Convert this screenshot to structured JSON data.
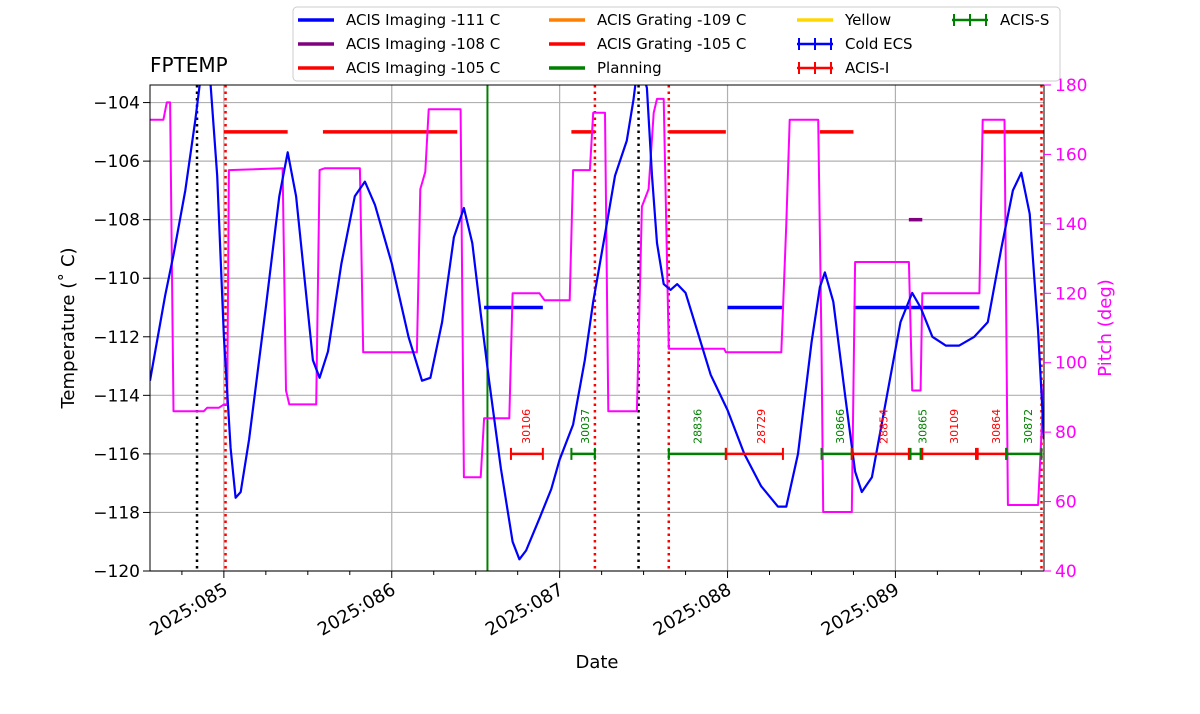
{
  "chart_data": {
    "type": "line",
    "title": "FPTEMP",
    "xlabel": "Date",
    "ylabel": "Temperature ($^\\circ$C)",
    "ylabel_display": "Temperature (˚ C)",
    "y2label": "Pitch (deg)",
    "xlim": [
      84.56,
      89.885
    ],
    "ylim": [
      -120,
      -103.4
    ],
    "y2lim": [
      40,
      180
    ],
    "grid": true,
    "x_ticks": [
      {
        "value": 85,
        "label": "2025:085"
      },
      {
        "value": 86,
        "label": "2025:086"
      },
      {
        "value": 87,
        "label": "2025:087"
      },
      {
        "value": 88,
        "label": "2025:088"
      },
      {
        "value": 89,
        "label": "2025:089"
      }
    ],
    "y_ticks": [
      -104,
      -106,
      -108,
      -110,
      -112,
      -114,
      -116,
      -118,
      -120
    ],
    "y2_ticks": [
      180,
      160,
      140,
      120,
      100,
      80,
      60,
      40
    ],
    "legend": [
      {
        "label": "ACIS Imaging -111 C",
        "color": "#0000ff",
        "style": "line"
      },
      {
        "label": "ACIS Imaging -108 C",
        "color": "#800080",
        "style": "line"
      },
      {
        "label": "ACIS Imaging -105 C",
        "color": "#ff0000",
        "style": "line"
      },
      {
        "label": "ACIS Grating -109 C",
        "color": "#ff8000",
        "style": "line"
      },
      {
        "label": "ACIS Grating -105 C",
        "color": "#ff0000",
        "style": "line"
      },
      {
        "label": "Planning",
        "color": "#008000",
        "style": "line"
      },
      {
        "label": "Yellow",
        "color": "#ffd700",
        "style": "line"
      },
      {
        "label": "Cold ECS",
        "color": "#0000ff",
        "style": "errorbar"
      },
      {
        "label": "ACIS-I",
        "color": "#ff0000",
        "style": "errorbar"
      },
      {
        "label": "ACIS-S",
        "color": "#008000",
        "style": "errorbar"
      }
    ],
    "temperature_series": {
      "name": "FPTEMP",
      "color": "#0000ff",
      "points": [
        [
          84.56,
          -113.5
        ],
        [
          84.65,
          -110.6
        ],
        [
          84.7,
          -109.2
        ],
        [
          84.77,
          -107
        ],
        [
          84.83,
          -104.6
        ],
        [
          84.86,
          -103.2
        ],
        [
          84.92,
          -103.3
        ],
        [
          84.96,
          -106.5
        ],
        [
          85.0,
          -112
        ],
        [
          85.04,
          -115.8
        ],
        [
          85.07,
          -117.5
        ],
        [
          85.1,
          -117.3
        ],
        [
          85.15,
          -115.5
        ],
        [
          85.25,
          -111
        ],
        [
          85.33,
          -107.2
        ],
        [
          85.38,
          -105.7
        ],
        [
          85.43,
          -107.2
        ],
        [
          85.48,
          -110
        ],
        [
          85.53,
          -112.8
        ],
        [
          85.57,
          -113.4
        ],
        [
          85.62,
          -112.5
        ],
        [
          85.7,
          -109.5
        ],
        [
          85.78,
          -107.2
        ],
        [
          85.84,
          -106.7
        ],
        [
          85.9,
          -107.5
        ],
        [
          86.0,
          -109.5
        ],
        [
          86.1,
          -112
        ],
        [
          86.18,
          -113.5
        ],
        [
          86.23,
          -113.4
        ],
        [
          86.3,
          -111.5
        ],
        [
          86.37,
          -108.6
        ],
        [
          86.43,
          -107.6
        ],
        [
          86.48,
          -108.8
        ],
        [
          86.53,
          -111.2
        ],
        [
          86.58,
          -113.5
        ],
        [
          86.65,
          -116.5
        ],
        [
          86.72,
          -119
        ],
        [
          86.76,
          -119.6
        ],
        [
          86.8,
          -119.3
        ],
        [
          86.88,
          -118.2
        ],
        [
          86.95,
          -117.2
        ],
        [
          87.0,
          -116.2
        ],
        [
          87.08,
          -115
        ],
        [
          87.15,
          -112.8
        ],
        [
          87.2,
          -110.8
        ],
        [
          87.27,
          -108.5
        ],
        [
          87.33,
          -106.5
        ],
        [
          87.4,
          -105.3
        ],
        [
          87.44,
          -103.9
        ],
        [
          87.47,
          -102.5
        ],
        [
          87.52,
          -103.5
        ],
        [
          87.55,
          -106.5
        ],
        [
          87.58,
          -108.8
        ],
        [
          87.62,
          -110.2
        ],
        [
          87.66,
          -110.4
        ],
        [
          87.7,
          -110.2
        ],
        [
          87.75,
          -110.5
        ],
        [
          87.82,
          -111.8
        ],
        [
          87.9,
          -113.3
        ],
        [
          88.0,
          -114.5
        ],
        [
          88.1,
          -116
        ],
        [
          88.2,
          -117.1
        ],
        [
          88.3,
          -117.8
        ],
        [
          88.35,
          -117.8
        ],
        [
          88.42,
          -116
        ],
        [
          88.5,
          -112.2
        ],
        [
          88.55,
          -110.3
        ],
        [
          88.58,
          -109.8
        ],
        [
          88.63,
          -110.8
        ],
        [
          88.7,
          -114
        ],
        [
          88.76,
          -116.6
        ],
        [
          88.8,
          -117.3
        ],
        [
          88.86,
          -116.8
        ],
        [
          88.95,
          -114
        ],
        [
          89.03,
          -111.5
        ],
        [
          89.1,
          -110.5
        ],
        [
          89.15,
          -111
        ],
        [
          89.22,
          -112
        ],
        [
          89.3,
          -112.3
        ],
        [
          89.38,
          -112.3
        ],
        [
          89.47,
          -112
        ],
        [
          89.55,
          -111.5
        ],
        [
          89.63,
          -109
        ],
        [
          89.7,
          -107
        ],
        [
          89.75,
          -106.4
        ],
        [
          89.8,
          -107.8
        ],
        [
          89.85,
          -111.8
        ],
        [
          89.885,
          -115.5
        ]
      ]
    },
    "pitch_series": {
      "name": "Pitch",
      "color": "#ff00ff",
      "axis": "right",
      "points": [
        [
          84.56,
          170
        ],
        [
          84.64,
          170
        ],
        [
          84.66,
          175
        ],
        [
          84.68,
          175
        ],
        [
          84.7,
          86
        ],
        [
          84.88,
          86
        ],
        [
          84.9,
          87
        ],
        [
          84.97,
          87
        ],
        [
          85.0,
          88
        ],
        [
          85.02,
          88
        ],
        [
          85.03,
          155.5
        ],
        [
          85.35,
          156
        ],
        [
          85.37,
          92
        ],
        [
          85.39,
          88
        ],
        [
          85.55,
          88
        ],
        [
          85.57,
          155.5
        ],
        [
          85.6,
          156
        ],
        [
          85.81,
          156
        ],
        [
          85.83,
          103
        ],
        [
          86.15,
          103
        ],
        [
          86.17,
          150
        ],
        [
          86.2,
          155
        ],
        [
          86.22,
          173
        ],
        [
          86.41,
          173
        ],
        [
          86.43,
          67
        ],
        [
          86.53,
          67
        ],
        [
          86.55,
          84
        ],
        [
          86.7,
          84
        ],
        [
          86.72,
          120
        ],
        [
          86.88,
          120
        ],
        [
          86.91,
          118
        ],
        [
          87.06,
          118
        ],
        [
          87.08,
          155.5
        ],
        [
          87.18,
          155.5
        ],
        [
          87.2,
          172
        ],
        [
          87.27,
          172
        ],
        [
          87.29,
          86
        ],
        [
          87.46,
          86
        ],
        [
          87.49,
          145
        ],
        [
          87.53,
          150
        ],
        [
          87.56,
          172
        ],
        [
          87.58,
          176
        ],
        [
          87.62,
          176
        ],
        [
          87.65,
          104
        ],
        [
          87.98,
          104
        ],
        [
          87.99,
          103
        ],
        [
          88.32,
          103
        ],
        [
          88.35,
          140
        ],
        [
          88.37,
          170
        ],
        [
          88.54,
          170
        ],
        [
          88.56,
          105
        ],
        [
          88.57,
          57
        ],
        [
          88.74,
          57
        ],
        [
          88.76,
          129
        ],
        [
          89.08,
          129
        ],
        [
          89.1,
          92
        ],
        [
          89.15,
          92
        ],
        [
          89.16,
          120
        ],
        [
          89.5,
          120
        ],
        [
          89.52,
          170
        ],
        [
          89.65,
          170
        ],
        [
          89.67,
          59
        ],
        [
          89.85,
          59
        ],
        [
          89.885,
          95
        ]
      ]
    },
    "horizontal_segments": [
      {
        "color": "#ff0000",
        "y": -105,
        "x": [
          [
            85.0,
            85.38
          ],
          [
            85.59,
            86.39
          ],
          [
            87.07,
            87.21
          ],
          [
            87.65,
            87.99
          ],
          [
            88.55,
            88.75
          ],
          [
            89.52,
            89.885
          ]
        ]
      },
      {
        "color": "#0000ff",
        "y": -111,
        "x": [
          [
            86.55,
            86.9
          ],
          [
            88.0,
            88.33
          ],
          [
            88.75,
            89.5
          ]
        ]
      },
      {
        "color": "#800080",
        "y": -108,
        "x": [
          [
            89.08,
            89.16
          ]
        ]
      }
    ],
    "vertical_lines": [
      {
        "x": 84.84,
        "color": "#000000",
        "style": "dotted"
      },
      {
        "x": 87.47,
        "color": "#000000",
        "style": "dotted"
      },
      {
        "x": 85.01,
        "color": "#ff0000",
        "style": "dotted"
      },
      {
        "x": 87.21,
        "color": "#ff0000",
        "style": "dotted"
      },
      {
        "x": 87.65,
        "color": "#ff0000",
        "style": "dotted"
      },
      {
        "x": 89.87,
        "color": "#ff0000",
        "style": "dotted"
      },
      {
        "x": 86.57,
        "color": "#008000",
        "style": "solid"
      }
    ],
    "obs_segments": [
      {
        "start": 86.71,
        "end": 86.9,
        "color": "#ff0000",
        "label": "30106",
        "label_x": 86.8
      },
      {
        "start": 87.07,
        "end": 87.21,
        "color": "#008000",
        "label": "30037",
        "label_x": 87.15
      },
      {
        "start": 87.65,
        "end": 87.99,
        "color": "#008000",
        "label": "28836",
        "label_x": 87.82
      },
      {
        "start": 87.99,
        "end": 88.33,
        "color": "#ff0000",
        "label": "28729",
        "label_x": 88.2
      },
      {
        "start": 88.56,
        "end": 88.74,
        "color": "#008000",
        "label": "30866",
        "label_x": 88.67
      },
      {
        "start": 88.74,
        "end": 89.08,
        "color": "#ff0000",
        "label": "28854",
        "label_x": 88.93
      },
      {
        "start": 89.09,
        "end": 89.15,
        "color": "#008000",
        "label": "30865",
        "label_x": 89.16
      },
      {
        "start": 89.16,
        "end": 89.48,
        "color": "#ff0000",
        "label": "30109",
        "label_x": 89.35
      },
      {
        "start": 89.49,
        "end": 89.66,
        "color": "#ff0000",
        "label": "30864",
        "label_x": 89.6
      },
      {
        "start": 89.66,
        "end": 89.87,
        "color": "#008000",
        "label": "30872",
        "label_x": 89.79
      }
    ],
    "obs_y": -116
  }
}
